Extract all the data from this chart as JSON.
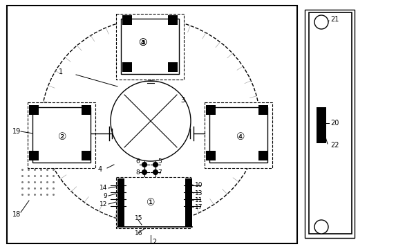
{
  "fig_width": 5.73,
  "fig_height": 3.6,
  "dpi": 100,
  "bg_color": "#ffffff",
  "line_color": "#000000",
  "label_fontsize": 7.0
}
